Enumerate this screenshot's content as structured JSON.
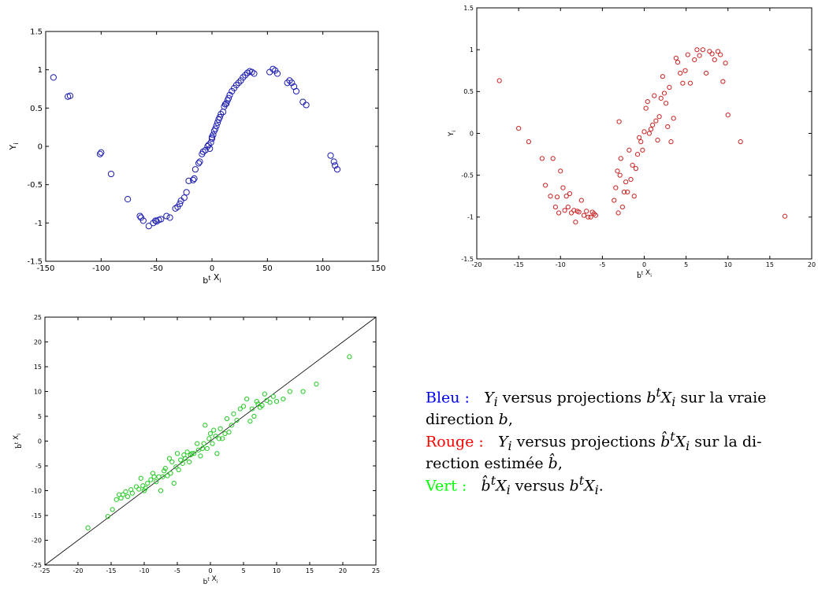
{
  "chart_data": [
    {
      "type": "scatter",
      "xlabel": "b^t X_i",
      "ylabel": "Y_i",
      "xlim": [
        -150,
        150
      ],
      "ylim": [
        -1.5,
        1.5
      ],
      "xticks": [
        "-150",
        "-100",
        "-50",
        "0",
        "50",
        "100",
        "150"
      ],
      "yticks": [
        "-1.5",
        "-1",
        "-0.5",
        "0",
        "0.5",
        "1",
        "1.5"
      ],
      "color": "#1c1cb0",
      "marker": "open-circle",
      "grid": false,
      "x": [
        -143,
        -130,
        -128,
        -101,
        -100,
        -91,
        -76,
        -65,
        -64,
        -62,
        -57,
        -53,
        -51,
        -50,
        -48,
        -46,
        -41,
        -38,
        -33,
        -31,
        -29,
        -28,
        -25,
        -23,
        -21,
        -17,
        -16,
        -15,
        -12,
        -11,
        -9,
        -8,
        -6,
        -4,
        -3,
        -2,
        -1,
        0,
        0,
        1,
        2,
        3,
        4,
        5,
        6,
        7,
        8,
        10,
        11,
        12,
        13,
        14,
        15,
        16,
        18,
        20,
        22,
        24,
        26,
        28,
        30,
        32,
        34,
        36,
        38,
        52,
        55,
        57,
        59,
        68,
        70,
        72,
        74,
        76,
        82,
        85,
        107,
        110,
        111,
        113
      ],
      "y": [
        0.9,
        0.65,
        0.66,
        -0.1,
        -0.08,
        -0.36,
        -0.69,
        -0.91,
        -0.93,
        -0.97,
        -1.04,
        -1.0,
        -0.97,
        -0.98,
        -0.96,
        -0.95,
        -0.91,
        -0.93,
        -0.81,
        -0.79,
        -0.75,
        -0.71,
        -0.67,
        -0.6,
        -0.45,
        -0.44,
        -0.42,
        -0.3,
        -0.22,
        -0.2,
        -0.1,
        -0.07,
        -0.05,
        0.0,
        0.02,
        -0.03,
        0.05,
        0.1,
        0.12,
        0.15,
        0.2,
        0.23,
        0.27,
        0.31,
        0.35,
        0.38,
        0.42,
        0.45,
        0.52,
        0.55,
        0.56,
        0.6,
        0.63,
        0.67,
        0.72,
        0.76,
        0.8,
        0.83,
        0.86,
        0.9,
        0.93,
        0.96,
        0.98,
        0.97,
        0.95,
        0.97,
        1.01,
        0.99,
        0.95,
        0.83,
        0.86,
        0.83,
        0.78,
        0.72,
        0.58,
        0.54,
        -0.12,
        -0.2,
        -0.25,
        -0.3
      ]
    },
    {
      "type": "scatter",
      "xlabel": "b-hat^t X_i",
      "ylabel": "Y_i",
      "xlim": [
        -20,
        20
      ],
      "ylim": [
        -1.5,
        1.5
      ],
      "xticks": [
        "-20",
        "-15",
        "-10",
        "-5",
        "0",
        "5",
        "10",
        "15",
        "20"
      ],
      "yticks": [
        "-1.5",
        "-1",
        "-0.5",
        "0",
        "0.5",
        "1",
        "1.5"
      ],
      "color": "#cc2222",
      "marker": "open-circle",
      "grid": false,
      "x": [
        -17.3,
        -15,
        -13.8,
        -12.2,
        -11.8,
        -11.2,
        -10.9,
        -10.6,
        -10.4,
        -10.2,
        -10.0,
        -9.7,
        -9.5,
        -9.3,
        -9.1,
        -8.9,
        -8.7,
        -8.4,
        -8.2,
        -8.0,
        -7.8,
        -7.5,
        -7.2,
        -6.9,
        -6.7,
        -6.4,
        -6.2,
        -6.0,
        -5.8,
        -3.6,
        -3.4,
        -3.2,
        -3.1,
        -3.0,
        -2.9,
        -2.8,
        -2.6,
        -2.4,
        -2.2,
        -2.0,
        -1.8,
        -1.6,
        -1.4,
        -1.2,
        -1.0,
        -0.8,
        -0.6,
        -0.4,
        -0.2,
        0.0,
        0.2,
        0.4,
        0.6,
        0.8,
        1.0,
        1.2,
        1.4,
        1.6,
        1.8,
        2.0,
        2.2,
        2.4,
        2.6,
        2.8,
        3.0,
        3.2,
        3.5,
        3.8,
        4.0,
        4.3,
        4.6,
        4.9,
        5.2,
        5.5,
        6.0,
        6.3,
        6.6,
        7.0,
        7.4,
        7.8,
        8.1,
        8.4,
        8.8,
        9.1,
        9.4,
        9.7,
        10.0,
        11.5,
        16.8
      ],
      "y": [
        0.63,
        0.06,
        -0.1,
        -0.3,
        -0.62,
        -0.75,
        -0.3,
        -0.88,
        -0.76,
        -0.95,
        -0.45,
        -0.65,
        -0.92,
        -0.75,
        -0.88,
        -0.72,
        -0.95,
        -0.92,
        -1.06,
        -0.93,
        -0.94,
        -0.8,
        -0.98,
        -0.93,
        -1.0,
        -1.0,
        -0.94,
        -0.96,
        -0.98,
        -0.8,
        -0.65,
        -0.45,
        -0.95,
        0.14,
        -0.5,
        -0.3,
        -0.88,
        -0.7,
        -0.58,
        -0.7,
        -0.2,
        -0.55,
        -0.38,
        -0.75,
        -0.42,
        -0.25,
        -0.05,
        -0.1,
        -0.2,
        0.02,
        0.3,
        0.38,
        0.0,
        0.05,
        0.1,
        0.45,
        0.15,
        -0.08,
        0.2,
        0.42,
        0.68,
        0.48,
        0.36,
        0.08,
        0.55,
        -0.1,
        0.18,
        0.9,
        0.85,
        0.72,
        0.6,
        0.75,
        0.94,
        0.6,
        0.88,
        1.0,
        0.93,
        1.0,
        0.72,
        0.98,
        0.95,
        0.88,
        0.98,
        0.94,
        0.62,
        0.84,
        0.22,
        -0.1,
        -0.99
      ]
    },
    {
      "type": "scatter",
      "xlabel": "b^t X_i",
      "ylabel": "b-hat^t X_i",
      "xlim": [
        -25,
        25
      ],
      "ylim": [
        -25,
        25
      ],
      "xticks": [
        "-25",
        "-20",
        "-15",
        "-10",
        "-5",
        "0",
        "5",
        "10",
        "15",
        "20",
        "25"
      ],
      "yticks": [
        "-25",
        "-20",
        "-15",
        "-10",
        "-5",
        "0",
        "5",
        "10",
        "15",
        "20",
        "25"
      ],
      "color": "#22cc22",
      "marker": "open-circle",
      "grid": false,
      "reference_line": "y = x",
      "x": [
        -18.5,
        -15.5,
        -14.8,
        -14.2,
        -13.8,
        -13.5,
        -13.2,
        -12.8,
        -12.5,
        -12.0,
        -11.8,
        -11.2,
        -10.8,
        -10.5,
        -10.2,
        -10.0,
        -9.8,
        -9.5,
        -9.0,
        -8.7,
        -8.5,
        -8.2,
        -7.8,
        -7.5,
        -7.2,
        -7.0,
        -6.8,
        -6.5,
        -6.2,
        -6.0,
        -5.8,
        -5.5,
        -5.2,
        -5.0,
        -4.8,
        -4.5,
        -4.2,
        -4.0,
        -3.8,
        -3.5,
        -3.2,
        -3.0,
        -2.8,
        -2.5,
        -2.0,
        -1.8,
        -1.5,
        -1.2,
        -1.0,
        -0.8,
        -0.5,
        -0.2,
        0.0,
        0.3,
        0.5,
        0.8,
        1.0,
        1.3,
        1.5,
        1.8,
        2.2,
        2.5,
        2.8,
        3.2,
        3.5,
        4.0,
        4.5,
        5.0,
        5.5,
        6.0,
        6.3,
        6.6,
        7.0,
        7.2,
        7.5,
        7.8,
        8.2,
        8.5,
        9.0,
        9.5,
        10.0,
        11.0,
        12.0,
        14.0,
        16.0,
        21.0
      ],
      "y": [
        -17.5,
        -15.2,
        -13.8,
        -11.8,
        -10.8,
        -11.5,
        -10.8,
        -10.2,
        -11.2,
        -9.8,
        -10.5,
        -9.2,
        -9.7,
        -7.5,
        -9.0,
        -10.0,
        -9.5,
        -8.5,
        -7.8,
        -6.5,
        -7.2,
        -8.2,
        -7.2,
        -10.0,
        -7.2,
        -6.0,
        -5.5,
        -7.0,
        -3.5,
        -6.5,
        -4.2,
        -8.5,
        -5.2,
        -2.5,
        -5.8,
        -3.8,
        -4.5,
        -2.8,
        -3.5,
        -2.2,
        -4.2,
        -2.8,
        -2.5,
        -2.5,
        -0.5,
        -1.8,
        -3.0,
        -1.5,
        -0.5,
        3.2,
        -1.5,
        0.5,
        1.5,
        -0.5,
        2.2,
        1.0,
        -2.5,
        0.5,
        2.5,
        0.5,
        1.5,
        4.5,
        1.8,
        3.2,
        5.5,
        4.2,
        6.5,
        7.0,
        8.5,
        4.0,
        6.5,
        5.0,
        8.0,
        7.5,
        6.8,
        7.2,
        9.5,
        8.2,
        7.8,
        9.0,
        8.0,
        8.5,
        10.0,
        10.0,
        11.5,
        17.0
      ]
    }
  ],
  "caption": {
    "bleu": {
      "label": "Bleu :",
      "color": "#0000ff",
      "math1": "Y",
      "math1_sub": "i",
      "text1": " versus projections ",
      "math2": "b",
      "math2_sup": "t",
      "math3": "X",
      "math3_sub": "i",
      "text2": " sur la vraie",
      "line2_text": "direction ",
      "line2_math": "b",
      "line2_end": ","
    },
    "rouge": {
      "label": "Rouge :",
      "color": "#ff0000",
      "math1": "Y",
      "math1_sub": "i",
      "text1": " versus projections ",
      "math2": "b̂",
      "math2_sup": "t",
      "math3": "X",
      "math3_sub": "i",
      "text2": " sur la di-",
      "line2_text": "rection estimée ",
      "line2_math": "b̂",
      "line2_end": ","
    },
    "vert": {
      "label": "Vert :",
      "color": "#00ff00",
      "math1": "b̂",
      "math1_sup": "t",
      "math2": "X",
      "math2_sub": "i",
      "text1": " versus ",
      "math3": "b",
      "math3_sup": "t",
      "math4": "X",
      "math4_sub": "i",
      "end": "."
    }
  }
}
